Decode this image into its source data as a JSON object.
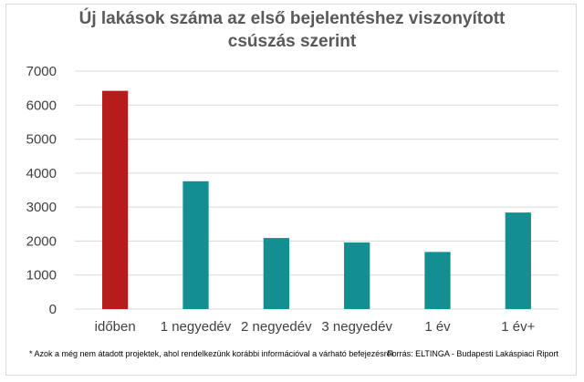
{
  "chart_data": {
    "type": "bar",
    "title_line1": "Új lakások száma az első bejelentéshez viszonyított",
    "title_line2": "csúszás szerint",
    "categories": [
      "időben",
      "1 negyedév",
      "2 negyedév",
      "3 negyedév",
      "1 év",
      "1 év+"
    ],
    "values": [
      6420,
      3760,
      2090,
      1960,
      1680,
      2840
    ],
    "bar_colors": [
      "#b71c1c",
      "#138f91",
      "#138f91",
      "#138f91",
      "#138f91",
      "#138f91"
    ],
    "ylim": [
      0,
      7000
    ],
    "yticks": [
      0,
      1000,
      2000,
      3000,
      4000,
      5000,
      6000,
      7000
    ],
    "grid": true,
    "xlabel": "",
    "ylabel": ""
  },
  "footnote": "* Azok a még nem átadott projektek, ahol rendelkezünk korábbi információval a várható befejezésről",
  "source": "Forrás: ELTINGA - Budapesti Lakáspiaci Riport"
}
